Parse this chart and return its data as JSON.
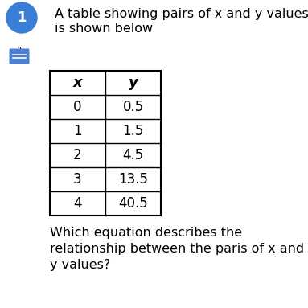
{
  "title_line1": "A table showing pairs of x and y values",
  "title_line2": "is shown below",
  "question_line1": "Which equation describes the",
  "question_line2": "relationship between the paris of x and",
  "question_line3": "y values?",
  "table_headers": [
    "x",
    "y"
  ],
  "table_data": [
    [
      "0",
      "0.5"
    ],
    [
      "1",
      "1.5"
    ],
    [
      "2",
      "4.5"
    ],
    [
      "3",
      "13.5"
    ],
    [
      "4",
      "40.5"
    ]
  ],
  "background_color": "#ffffff",
  "text_color": "#000000",
  "circle_color": "#3a7fd5",
  "circle_number": "1",
  "icon_color": "#4a7fd5",
  "title_fontsize": 11.5,
  "table_fontsize": 12,
  "question_fontsize": 11.5,
  "side_number_fontsize": 8
}
